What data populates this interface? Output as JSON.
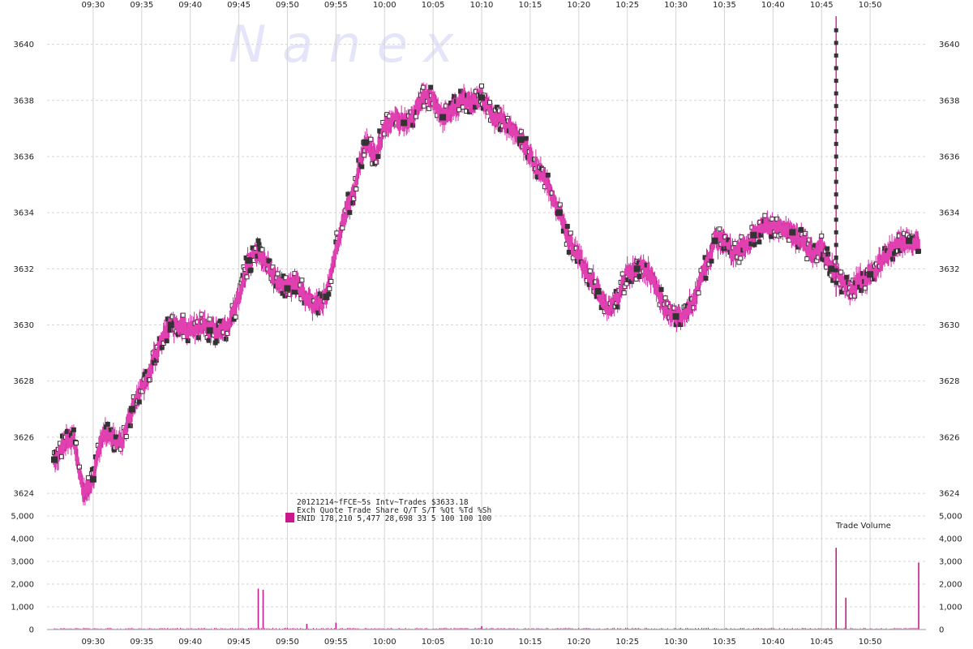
{
  "watermark": "N a n e x",
  "colors": {
    "trade_bar": "#e040b0",
    "trade_whisker": "#d02aa0",
    "marker_fill": "#333333",
    "volume": "#c21f8a",
    "grid": "#d4d4d4",
    "legend_swatch": "#c8188c"
  },
  "info": {
    "title": "20121214~fFCE~5s Intv~Trades $3633.18",
    "header": "Exch   Quote Trade  Share  Q/T   S/T  %Qt %Td %Sh",
    "row": "ENID 178,210 5,477 28,698    33     5 100 100 100"
  },
  "volume_label": "Trade Volume",
  "chart_data": [
    {
      "type": "line",
      "title": "",
      "xlabel": "",
      "ylabel": "",
      "x_ticks": [
        "09:30",
        "09:35",
        "09:40",
        "09:45",
        "09:50",
        "09:55",
        "10:00",
        "10:05",
        "10:10",
        "10:15",
        "10:20",
        "10:25",
        "10:30",
        "10:35",
        "10:40",
        "10:45",
        "10:50"
      ],
      "y_ticks": [
        "3624",
        "3626",
        "3628",
        "3630",
        "3632",
        "3634",
        "3636",
        "3638",
        "3640"
      ],
      "ylim": [
        3623.8,
        3641
      ],
      "grid": true,
      "series": [
        {
          "x": [
            "09:26",
            "09:27",
            "09:28",
            "09:29",
            "09:30",
            "09:31",
            "09:32",
            "09:33",
            "09:34",
            "09:35",
            "09:36",
            "09:37",
            "09:38",
            "09:39",
            "09:40",
            "09:41",
            "09:42",
            "09:43",
            "09:44",
            "09:45",
            "09:46",
            "09:47",
            "09:48",
            "09:49",
            "09:50",
            "09:51",
            "09:52",
            "09:53",
            "09:54",
            "09:55",
            "09:56",
            "09:57",
            "09:58",
            "09:59",
            "10:00",
            "10:01",
            "10:02",
            "10:03",
            "10:04",
            "10:05",
            "10:06",
            "10:07",
            "10:08",
            "10:09",
            "10:10",
            "10:11",
            "10:12",
            "10:13",
            "10:14",
            "10:15",
            "10:16",
            "10:17",
            "10:18",
            "10:19",
            "10:20",
            "10:21",
            "10:22",
            "10:23",
            "10:24",
            "10:25",
            "10:26",
            "10:27",
            "10:28",
            "10:29",
            "10:30",
            "10:31",
            "10:32",
            "10:33",
            "10:34",
            "10:35",
            "10:36",
            "10:37",
            "10:38",
            "10:39",
            "10:40",
            "10:41",
            "10:42",
            "10:43",
            "10:44",
            "10:45",
            "10:46",
            "10:47",
            "10:48",
            "10:49",
            "10:50",
            "10:51",
            "10:52",
            "10:53",
            "10:54",
            "10:55"
          ],
          "values": [
            3625.2,
            3625.8,
            3626.0,
            3624.0,
            3624.5,
            3626.2,
            3626.0,
            3625.8,
            3627.0,
            3627.8,
            3628.5,
            3629.5,
            3630.0,
            3630.0,
            3629.8,
            3630.0,
            3629.8,
            3629.7,
            3630.0,
            3631.0,
            3632.3,
            3632.6,
            3632.1,
            3631.5,
            3631.3,
            3631.6,
            3630.8,
            3630.7,
            3631.0,
            3632.8,
            3634.0,
            3635.0,
            3636.5,
            3636.0,
            3637.0,
            3637.3,
            3637.2,
            3637.5,
            3638.2,
            3638.0,
            3637.4,
            3637.7,
            3638.1,
            3637.9,
            3638.1,
            3637.5,
            3637.3,
            3637.0,
            3636.6,
            3636.0,
            3635.5,
            3634.8,
            3634.0,
            3633.0,
            3632.5,
            3631.8,
            3631.2,
            3630.5,
            3631.0,
            3631.8,
            3632.0,
            3632.0,
            3631.4,
            3630.5,
            3630.3,
            3630.5,
            3631.0,
            3632.0,
            3633.0,
            3633.0,
            3632.5,
            3632.8,
            3633.2,
            3633.5,
            3633.5,
            3633.5,
            3633.3,
            3633.0,
            3632.5,
            3632.8,
            3632.0,
            3631.6,
            3631.2,
            3631.6,
            3631.8,
            3632.2,
            3632.6,
            3632.9,
            3633.0,
            3633.0
          ]
        }
      ]
    },
    {
      "type": "bar",
      "title": "",
      "xlabel": "",
      "ylabel": "",
      "y_ticks": [
        "0",
        "1,000",
        "2,000",
        "3,000",
        "4,000",
        "5,000"
      ],
      "ylim": [
        0,
        5000
      ],
      "grid": true,
      "spikes": [
        {
          "x": "09:47",
          "value": 1800
        },
        {
          "x": "09:47.5",
          "value": 1750
        },
        {
          "x": "10:46.5",
          "value": 3600
        },
        {
          "x": "10:47.5",
          "value": 1400
        },
        {
          "x": "10:55",
          "value": 2950
        },
        {
          "x": "09:52",
          "value": 250
        },
        {
          "x": "09:55",
          "value": 300
        },
        {
          "x": "10:10",
          "value": 150
        }
      ]
    }
  ]
}
